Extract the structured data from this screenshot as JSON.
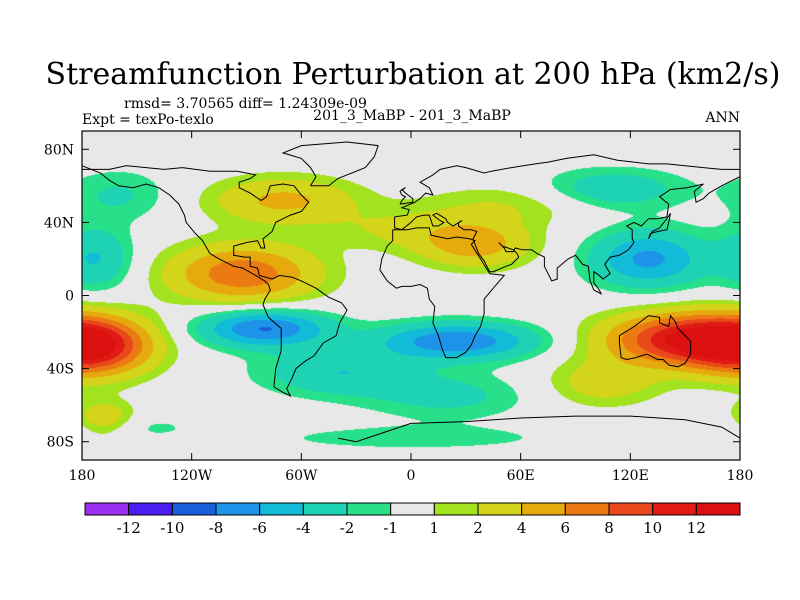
{
  "chart_data": {
    "type": "heatmap",
    "title": "Streamfunction Perturbation at 200 hPa (km2/s)",
    "stats_line": "rmsd= 3.70565 diff= 1.24309e-09",
    "experiment_label": "Expt = texPo-texlo",
    "case_label": "201_3_MaBP - 201_3_MaBP",
    "season_label": "ANN",
    "projection": "cylindrical-equidistant",
    "longitude_range": [
      -180,
      180
    ],
    "latitude_range": [
      -90,
      90
    ],
    "x_tick_values": [
      -180,
      -120,
      -60,
      0,
      60,
      120,
      180
    ],
    "x_tick_labels": [
      "180",
      "120W",
      "60W",
      "0",
      "60E",
      "120E",
      "180"
    ],
    "y_tick_values": [
      80,
      40,
      0,
      -40,
      -80
    ],
    "y_tick_labels": [
      "80N",
      "40N",
      "0",
      "40S",
      "80S"
    ],
    "colorbar": {
      "labels": [
        "-12",
        "-10",
        "-8",
        "-6",
        "-4",
        "-2",
        "-1",
        "1",
        "2",
        "4",
        "6",
        "8",
        "10",
        "12"
      ],
      "levels": [
        -12,
        -10,
        -8,
        -6,
        -4,
        -2,
        -1,
        1,
        2,
        4,
        6,
        8,
        10,
        12
      ],
      "colors": [
        "#9b2ff0",
        "#4a1df0",
        "#1a5fdc",
        "#1e94e8",
        "#12bcd8",
        "#1ed2b4",
        "#28e08a",
        "#e8e8e8",
        "#a2e21e",
        "#d4d41a",
        "#e6aa0e",
        "#ec7a12",
        "#e8481a",
        "#e01a14",
        "#dd1010"
      ]
    },
    "features": [
      {
        "lon": -92,
        "lat": 12,
        "amp": 7.5,
        "sx": 28,
        "sy": 11
      },
      {
        "lon": -70,
        "lat": 52,
        "amp": 4.5,
        "sx": 28,
        "sy": 9
      },
      {
        "lon": 35,
        "lat": 28,
        "amp": 5.0,
        "sx": 22,
        "sy": 9
      },
      {
        "lon": -5,
        "lat": 36,
        "amp": 2.0,
        "sx": 30,
        "sy": 8
      },
      {
        "lon": 55,
        "lat": 50,
        "amp": 2.0,
        "sx": 35,
        "sy": 8
      },
      {
        "lon": 150,
        "lat": -24,
        "amp": 11.5,
        "sx": 30,
        "sy": 10
      },
      {
        "lon": -175,
        "lat": -28,
        "amp": 11.0,
        "sx": 22,
        "sy": 11
      },
      {
        "lon": 105,
        "lat": -48,
        "amp": 3.0,
        "sx": 22,
        "sy": 9
      },
      {
        "lon": -168,
        "lat": -68,
        "amp": 4.0,
        "sx": 12,
        "sy": 7
      },
      {
        "lon": -80,
        "lat": -18,
        "amp": -8.2,
        "sx": 24,
        "sy": 7
      },
      {
        "lon": 25,
        "lat": -25,
        "amp": -7.8,
        "sx": 30,
        "sy": 7
      },
      {
        "lon": -40,
        "lat": -42,
        "amp": -3.8,
        "sx": 30,
        "sy": 9
      },
      {
        "lon": 20,
        "lat": -55,
        "amp": -2.5,
        "sx": 32,
        "sy": 9
      },
      {
        "lon": 130,
        "lat": 20,
        "amp": -6.5,
        "sx": 22,
        "sy": 11
      },
      {
        "lon": 110,
        "lat": 58,
        "amp": -3.5,
        "sx": 28,
        "sy": 8
      },
      {
        "lon": -172,
        "lat": 20,
        "amp": -4.0,
        "sx": 14,
        "sy": 12
      },
      {
        "lon": -160,
        "lat": 55,
        "amp": -2.2,
        "sx": 20,
        "sy": 10
      },
      {
        "lon": -160,
        "lat": -72,
        "amp": -1.6,
        "sx": 30,
        "sy": 5
      },
      {
        "lon": 0,
        "lat": -78,
        "amp": -1.6,
        "sx": 60,
        "sy": 5
      }
    ],
    "coastlines": [
      [
        [
          -180,
          71
        ],
        [
          -170,
          67
        ],
        [
          -165,
          63
        ],
        [
          -160,
          60
        ],
        [
          -152,
          59
        ],
        [
          -145,
          61
        ],
        [
          -138,
          59
        ],
        [
          -132,
          55
        ],
        [
          -127,
          50
        ],
        [
          -124,
          44
        ],
        [
          -123,
          40
        ],
        [
          -118,
          34
        ],
        [
          -114,
          30
        ],
        [
          -110,
          23
        ],
        [
          -105,
          20
        ],
        [
          -97,
          16
        ],
        [
          -92,
          15
        ],
        [
          -85,
          11
        ],
        [
          -80,
          8
        ],
        [
          -78,
          6
        ],
        [
          -77,
          3
        ],
        [
          -80,
          -2
        ],
        [
          -81,
          -5
        ],
        [
          -78,
          -12
        ],
        [
          -71,
          -18
        ],
        [
          -71,
          -30
        ],
        [
          -74,
          -40
        ],
        [
          -75,
          -50
        ],
        [
          -70,
          -53
        ],
        [
          -66,
          -55
        ],
        [
          -68,
          -51
        ],
        [
          -65,
          -45
        ],
        [
          -63,
          -40
        ],
        [
          -58,
          -36
        ],
        [
          -53,
          -33
        ],
        [
          -48,
          -26
        ],
        [
          -41,
          -22
        ],
        [
          -39,
          -15
        ],
        [
          -35,
          -8
        ],
        [
          -38,
          -4
        ],
        [
          -45,
          -1
        ],
        [
          -52,
          4
        ],
        [
          -60,
          8
        ],
        [
          -65,
          10
        ],
        [
          -72,
          11
        ],
        [
          -76,
          9
        ],
        [
          -83,
          11
        ],
        [
          -84,
          15
        ],
        [
          -88,
          16
        ],
        [
          -88,
          21
        ],
        [
          -91,
          21
        ],
        [
          -97,
          22
        ],
        [
          -97,
          27
        ],
        [
          -90,
          29
        ],
        [
          -84,
          30
        ],
        [
          -82,
          26
        ],
        [
          -80,
          26
        ],
        [
          -81,
          31
        ],
        [
          -76,
          35
        ],
        [
          -74,
          40
        ],
        [
          -70,
          42
        ],
        [
          -66,
          44
        ],
        [
          -60,
          46
        ],
        [
          -56,
          51
        ],
        [
          -60,
          55
        ],
        [
          -64,
          60
        ],
        [
          -70,
          61
        ],
        [
          -77,
          60
        ],
        [
          -79,
          54
        ],
        [
          -82,
          52
        ],
        [
          -88,
          56
        ],
        [
          -94,
          59
        ],
        [
          -94,
          62
        ],
        [
          -88,
          64
        ],
        [
          -85,
          66
        ],
        [
          -95,
          68
        ],
        [
          -110,
          68
        ],
        [
          -125,
          70
        ],
        [
          -135,
          69
        ],
        [
          -145,
          70
        ],
        [
          -156,
          71
        ],
        [
          -165,
          69
        ],
        [
          -180,
          69
        ]
      ],
      [
        [
          -55,
          60
        ],
        [
          -45,
          60
        ],
        [
          -40,
          64
        ],
        [
          -25,
          70
        ],
        [
          -20,
          76
        ],
        [
          -18,
          82
        ],
        [
          -35,
          84
        ],
        [
          -60,
          82
        ],
        [
          -70,
          78
        ],
        [
          -60,
          75
        ],
        [
          -55,
          70
        ],
        [
          -52,
          65
        ],
        [
          -55,
          60
        ]
      ],
      [
        [
          -10,
          36
        ],
        [
          -6,
          36
        ],
        [
          -2,
          36
        ],
        [
          3,
          37
        ],
        [
          10,
          37
        ],
        [
          11,
          33
        ],
        [
          20,
          31
        ],
        [
          25,
          32
        ],
        [
          32,
          31
        ],
        [
          35,
          30
        ],
        [
          33,
          28
        ],
        [
          38,
          20
        ],
        [
          43,
          12
        ],
        [
          51,
          11
        ],
        [
          45,
          4
        ],
        [
          40,
          -2
        ],
        [
          40,
          -10
        ],
        [
          38,
          -17
        ],
        [
          35,
          -22
        ],
        [
          33,
          -27
        ],
        [
          30,
          -31
        ],
        [
          25,
          -34
        ],
        [
          19,
          -34
        ],
        [
          17,
          -29
        ],
        [
          15,
          -22
        ],
        [
          12,
          -15
        ],
        [
          13,
          -6
        ],
        [
          10,
          -2
        ],
        [
          9,
          4
        ],
        [
          5,
          6
        ],
        [
          0,
          5
        ],
        [
          -5,
          5
        ],
        [
          -8,
          4
        ],
        [
          -13,
          8
        ],
        [
          -17,
          14
        ],
        [
          -16,
          20
        ],
        [
          -13,
          27
        ],
        [
          -10,
          30
        ],
        [
          -10,
          36
        ]
      ],
      [
        [
          -9,
          43
        ],
        [
          -2,
          44
        ],
        [
          -1,
          47
        ],
        [
          -5,
          48
        ],
        [
          2,
          51
        ],
        [
          5,
          53
        ],
        [
          8,
          56
        ],
        [
          12,
          55
        ],
        [
          10,
          59
        ],
        [
          5,
          62
        ],
        [
          12,
          66
        ],
        [
          16,
          69
        ],
        [
          25,
          71
        ],
        [
          30,
          70
        ],
        [
          40,
          67
        ],
        [
          44,
          68
        ],
        [
          55,
          70
        ],
        [
          68,
          72
        ],
        [
          75,
          73
        ],
        [
          85,
          75
        ],
        [
          100,
          77
        ],
        [
          113,
          74
        ],
        [
          130,
          72
        ],
        [
          140,
          72
        ],
        [
          150,
          71
        ],
        [
          160,
          70
        ],
        [
          170,
          69
        ],
        [
          180,
          69
        ]
      ],
      [
        [
          180,
          65
        ],
        [
          178,
          64
        ],
        [
          170,
          60
        ],
        [
          163,
          56
        ],
        [
          160,
          53
        ],
        [
          156,
          51
        ],
        [
          155,
          57
        ],
        [
          160,
          61
        ],
        [
          151,
          59
        ],
        [
          142,
          58
        ],
        [
          136,
          54
        ],
        [
          141,
          50
        ],
        [
          140,
          43
        ],
        [
          135,
          42
        ],
        [
          130,
          42
        ],
        [
          126,
          38
        ],
        [
          122,
          40
        ],
        [
          118,
          38
        ],
        [
          121,
          36
        ],
        [
          121,
          31
        ],
        [
          122,
          29
        ],
        [
          119,
          25
        ],
        [
          114,
          22
        ],
        [
          109,
          21
        ],
        [
          106,
          17
        ],
        [
          109,
          12
        ],
        [
          105,
          9
        ],
        [
          103,
          11
        ],
        [
          100,
          13
        ],
        [
          100,
          7
        ],
        [
          103,
          3
        ],
        [
          104,
          1
        ],
        [
          100,
          3
        ],
        [
          98,
          8
        ],
        [
          97,
          16
        ],
        [
          94,
          17
        ],
        [
          90,
          22
        ],
        [
          86,
          20
        ],
        [
          80,
          15
        ],
        [
          80,
          9
        ],
        [
          77,
          8
        ],
        [
          73,
          16
        ],
        [
          73,
          21
        ],
        [
          69,
          23
        ],
        [
          66,
          25
        ],
        [
          61,
          25
        ],
        [
          57,
          26
        ],
        [
          56,
          24
        ],
        [
          52,
          24
        ],
        [
          51,
          26
        ],
        [
          48,
          29
        ],
        [
          50,
          27
        ],
        [
          56,
          25
        ],
        [
          58,
          23
        ],
        [
          59,
          21
        ],
        [
          55,
          17
        ],
        [
          52,
          16
        ],
        [
          45,
          13
        ],
        [
          43,
          13
        ],
        [
          40,
          19
        ],
        [
          37,
          23
        ],
        [
          35,
          28
        ],
        [
          34,
          31
        ],
        [
          36,
          35
        ],
        [
          33,
          36
        ],
        [
          29,
          36
        ],
        [
          26,
          38
        ],
        [
          26,
          40
        ],
        [
          28,
          41
        ],
        [
          23,
          38
        ],
        [
          20,
          40
        ],
        [
          19,
          42
        ],
        [
          14,
          45
        ],
        [
          12,
          44
        ],
        [
          16,
          41
        ],
        [
          18,
          40
        ],
        [
          15,
          38
        ],
        [
          12,
          38
        ],
        [
          10,
          44
        ],
        [
          7,
          44
        ],
        [
          3,
          43
        ],
        [
          0,
          40
        ],
        [
          -5,
          36
        ],
        [
          -9,
          37
        ],
        [
          -9,
          43
        ]
      ],
      [
        [
          114,
          -22
        ],
        [
          114,
          -26
        ],
        [
          115,
          -34
        ],
        [
          118,
          -35
        ],
        [
          123,
          -34
        ],
        [
          129,
          -32
        ],
        [
          135,
          -35
        ],
        [
          138,
          -35
        ],
        [
          141,
          -38
        ],
        [
          146,
          -39
        ],
        [
          150,
          -37
        ],
        [
          153,
          -32
        ],
        [
          153,
          -25
        ],
        [
          150,
          -22
        ],
        [
          146,
          -18
        ],
        [
          145,
          -15
        ],
        [
          142,
          -11
        ],
        [
          141,
          -17
        ],
        [
          136,
          -15
        ],
        [
          136,
          -12
        ],
        [
          130,
          -11
        ],
        [
          126,
          -14
        ],
        [
          122,
          -17
        ],
        [
          114,
          -22
        ]
      ],
      [
        [
          -6,
          50
        ],
        [
          1,
          51
        ],
        [
          1,
          53
        ],
        [
          -3,
          56
        ],
        [
          -5,
          58
        ],
        [
          -3,
          59
        ],
        [
          -6,
          57
        ],
        [
          -5,
          55
        ],
        [
          -3,
          54
        ],
        [
          -5,
          52
        ],
        [
          -6,
          50
        ]
      ],
      [
        [
          130,
          31
        ],
        [
          131,
          34
        ],
        [
          135,
          35
        ],
        [
          140,
          36
        ],
        [
          141,
          40
        ],
        [
          142,
          45
        ],
        [
          140,
          42
        ],
        [
          136,
          37
        ],
        [
          132,
          35
        ],
        [
          130,
          31
        ]
      ],
      [
        [
          -40,
          -78
        ],
        [
          -30,
          -80
        ],
        [
          0,
          -70
        ],
        [
          30,
          -69
        ],
        [
          60,
          -67
        ],
        [
          90,
          -66
        ],
        [
          120,
          -66
        ],
        [
          150,
          -68
        ],
        [
          170,
          -72
        ],
        [
          180,
          -78
        ]
      ]
    ]
  }
}
